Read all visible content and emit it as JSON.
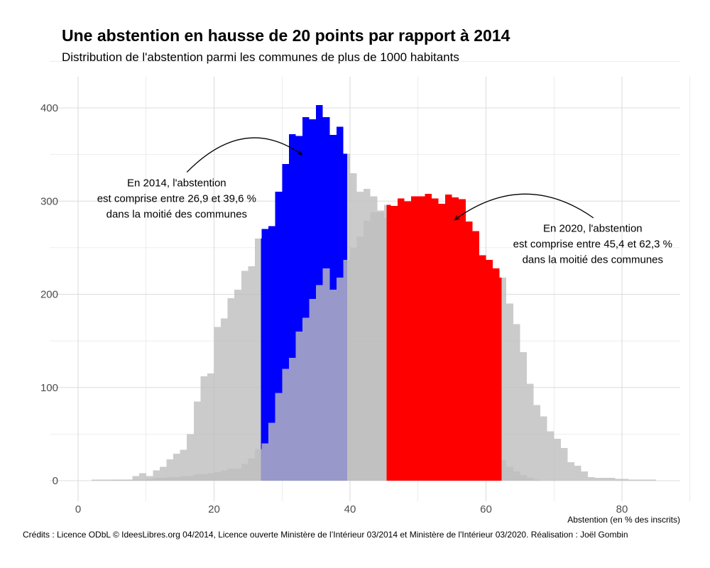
{
  "chart_data": {
    "type": "bar",
    "title": "Une abstention en hausse de 20 points par rapport à 2014",
    "subtitle": "Distribution de l'abstention parmi les communes de plus de 1000 habitants",
    "xlabel": "Abstention (en % des inscrits)",
    "ylabel": "",
    "xlim": [
      0,
      88
    ],
    "ylim": [
      -15,
      435
    ],
    "x_ticks": [
      0,
      20,
      40,
      60,
      80
    ],
    "y_ticks": [
      0,
      100,
      200,
      300,
      400
    ],
    "bin_width": 1,
    "grid": true,
    "colors": {
      "grey": "#bebebe",
      "blue": "#0000ff",
      "red": "#ff0000",
      "grid": "#dcdcdc"
    },
    "series": [
      {
        "name": "2014",
        "color": "#bebebe",
        "highlight_range": [
          26.9,
          39.6
        ],
        "highlight_color": "#0000ff",
        "x_start": 4,
        "values": [
          0,
          1,
          1,
          1,
          5,
          8,
          5,
          11,
          15,
          23,
          29,
          33,
          50,
          85,
          112,
          115,
          165,
          174,
          196,
          205,
          225,
          230,
          260,
          270,
          273,
          310,
          340,
          372,
          370,
          390,
          388,
          403,
          390,
          371,
          380,
          351,
          330,
          310,
          313,
          305,
          290,
          282,
          250,
          233,
          225,
          200,
          180,
          160,
          140,
          127,
          112,
          98,
          85,
          73,
          60,
          50,
          40,
          30,
          22,
          15,
          10,
          6,
          3,
          1
        ]
      },
      {
        "name": "2020",
        "color": "#bebebe",
        "highlight_range": [
          45.4,
          62.3
        ],
        "highlight_color": "#ff0000",
        "x_start": 2,
        "values": [
          1,
          1,
          1,
          1,
          1,
          1,
          1,
          1,
          2,
          3,
          3,
          4,
          4,
          5,
          5,
          7,
          7,
          8,
          9,
          11,
          13,
          13,
          18,
          24,
          34,
          40,
          62,
          94,
          120,
          132,
          160,
          175,
          195,
          210,
          228,
          205,
          218,
          237,
          250,
          262,
          279,
          288,
          288,
          296,
          295,
          303,
          300,
          305,
          305,
          308,
          303,
          297,
          307,
          304,
          302,
          278,
          268,
          242,
          237,
          228,
          218,
          190,
          168,
          138,
          104,
          81,
          69,
          53,
          45,
          35,
          20,
          16,
          10,
          4,
          3,
          3,
          3,
          2,
          2,
          1,
          1,
          1,
          1
        ]
      }
    ],
    "annotations": [
      {
        "lines": [
          "En 2014, l'abstention",
          "est comprise entre 26,9 et 39,6 %",
          "dans la moitié des communes"
        ],
        "text_x": 14.5,
        "text_y": 316,
        "arrow_from": [
          16,
          331
        ],
        "arrow_to": [
          32.9,
          350
        ],
        "curvature": "up"
      },
      {
        "lines": [
          "En 2020, l'abstention",
          "est comprise entre 45,4 et 62,3 %",
          "dans la moitié des communes"
        ],
        "text_x": 75.7,
        "text_y": 267,
        "arrow_from": [
          75.8,
          282
        ],
        "arrow_to": [
          55.4,
          280
        ],
        "curvature": "up"
      }
    ],
    "credits": "Crédits : Licence ODbL © IdeesLibres.org 04/2014, Licence ouverte Ministère de l’Intérieur 03/2014 et Ministère de l'Intérieur 03/2020. Réalisation : Joël Gombin"
  }
}
